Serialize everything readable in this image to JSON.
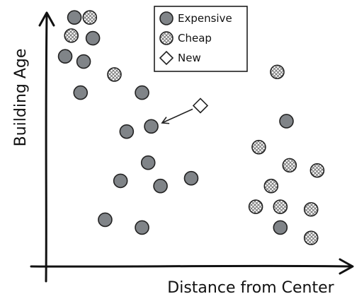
{
  "chart_data": {
    "type": "scatter",
    "xlabel": "Distance from Center",
    "ylabel": "Building Age",
    "xlim": [
      0,
      100
    ],
    "ylim": [
      0,
      100
    ],
    "grid": false,
    "legend_position": "top-center",
    "legend": [
      {
        "label": "Expensive",
        "marker": "circle-filled"
      },
      {
        "label": "Cheap",
        "marker": "circle-hatched"
      },
      {
        "label": "New",
        "marker": "diamond-open"
      }
    ],
    "series": [
      {
        "name": "Expensive",
        "color": "#808488",
        "points": [
          [
            9,
            96
          ],
          [
            15,
            88
          ],
          [
            6,
            81
          ],
          [
            12,
            79
          ],
          [
            11,
            67
          ],
          [
            31,
            67
          ],
          [
            26,
            52
          ],
          [
            34,
            54
          ],
          [
            33,
            40
          ],
          [
            37,
            31
          ],
          [
            24,
            33
          ],
          [
            47,
            34
          ],
          [
            19,
            18
          ],
          [
            31,
            15
          ],
          [
            78,
            56
          ],
          [
            76,
            15
          ]
        ]
      },
      {
        "name": "Cheap",
        "color": "#9a9a9a",
        "points": [
          [
            14,
            96
          ],
          [
            8,
            89
          ],
          [
            22,
            74
          ],
          [
            75,
            75
          ],
          [
            69,
            46
          ],
          [
            79,
            39
          ],
          [
            73,
            31
          ],
          [
            88,
            37
          ],
          [
            68,
            23
          ],
          [
            76,
            23
          ],
          [
            86,
            22
          ],
          [
            86,
            11
          ]
        ]
      },
      {
        "name": "New",
        "color": "#ffffff",
        "points": [
          [
            50,
            62
          ]
        ]
      }
    ],
    "annotations": [
      {
        "type": "arrow",
        "from": [
          50,
          62
        ],
        "to": [
          35,
          54
        ]
      }
    ]
  }
}
